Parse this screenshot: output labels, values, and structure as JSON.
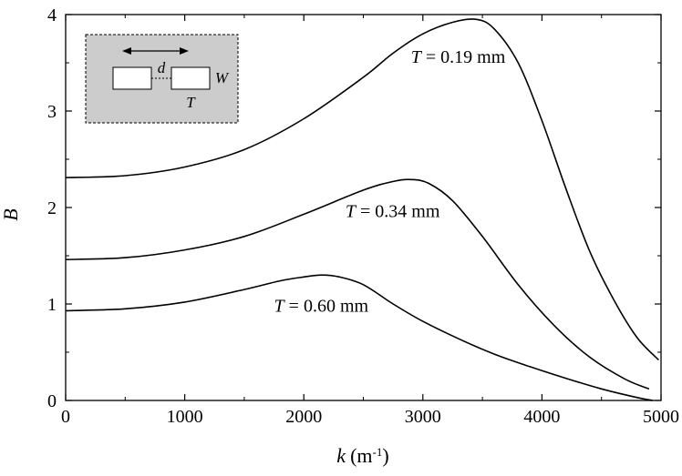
{
  "chart_data": {
    "type": "line",
    "xlabel": {
      "var": "k",
      "unit": "(m",
      "exp": "-1",
      "close": ")"
    },
    "ylabel": "B",
    "xlim": [
      0,
      5000
    ],
    "ylim": [
      0,
      4
    ],
    "xticks": [
      0,
      1000,
      2000,
      3000,
      4000,
      5000
    ],
    "yticks": [
      0,
      1,
      2,
      3,
      4
    ],
    "xtick_labels": [
      "0",
      "1000",
      "2000",
      "3000",
      "4000",
      "5000"
    ],
    "ytick_labels": [
      "0",
      "1",
      "2",
      "3",
      "4"
    ],
    "grid": false,
    "legend": "none",
    "series": [
      {
        "label_var": "T",
        "label_rest": " = 0.19 mm",
        "label_at": [
          2900,
          3.5
        ],
        "x": [
          0,
          500,
          1000,
          1500,
          2000,
          2500,
          2750,
          3000,
          3250,
          3450,
          3600,
          3800,
          4000,
          4200,
          4400,
          4600,
          4800,
          4980
        ],
        "y": [
          2.31,
          2.33,
          2.42,
          2.6,
          2.92,
          3.35,
          3.6,
          3.8,
          3.92,
          3.95,
          3.85,
          3.5,
          2.9,
          2.2,
          1.55,
          1.05,
          0.65,
          0.42
        ]
      },
      {
        "label_var": "T",
        "label_rest": " = 0.34 mm",
        "label_at": [
          2350,
          1.9
        ],
        "x": [
          0,
          500,
          1000,
          1500,
          2000,
          2500,
          2750,
          2900,
          3050,
          3250,
          3500,
          3800,
          4100,
          4400,
          4700,
          4900
        ],
        "y": [
          1.46,
          1.48,
          1.56,
          1.7,
          1.93,
          2.18,
          2.27,
          2.29,
          2.25,
          2.07,
          1.7,
          1.2,
          0.78,
          0.45,
          0.22,
          0.12
        ]
      },
      {
        "label_var": "T",
        "label_rest": " = 0.60 mm",
        "label_at": [
          1750,
          0.92
        ],
        "x": [
          0,
          500,
          1000,
          1500,
          1800,
          2000,
          2150,
          2300,
          2500,
          2750,
          3000,
          3300,
          3600,
          3900,
          4200,
          4500,
          4800,
          4930
        ],
        "y": [
          0.93,
          0.95,
          1.02,
          1.15,
          1.24,
          1.28,
          1.3,
          1.28,
          1.2,
          1.0,
          0.82,
          0.64,
          0.48,
          0.35,
          0.23,
          0.12,
          0.03,
          0.0
        ]
      }
    ],
    "inset": {
      "top_label": "d",
      "right_label": "W",
      "bottom_label": "T"
    }
  }
}
